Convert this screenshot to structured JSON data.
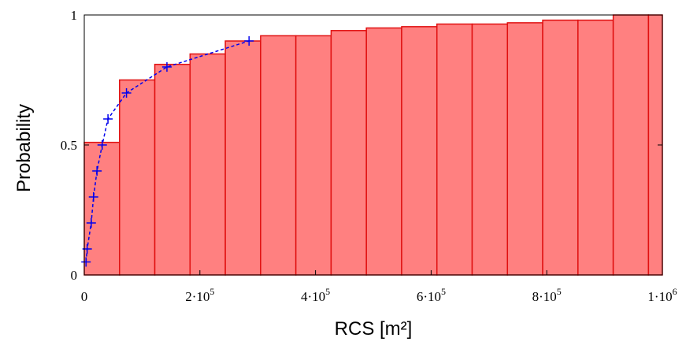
{
  "chart_data": {
    "type": "bar",
    "title": "",
    "xlabel": "RCS [m²]",
    "ylabel": "Probability",
    "xlim": [
      0,
      1000000
    ],
    "ylim": [
      0,
      1
    ],
    "x_tick_labels": [
      {
        "value": 0,
        "mantissa": "0",
        "exponent": ""
      },
      {
        "value": 200000,
        "mantissa": "2·10",
        "exponent": "5"
      },
      {
        "value": 400000,
        "mantissa": "4·10",
        "exponent": "5"
      },
      {
        "value": 600000,
        "mantissa": "6·10",
        "exponent": "5"
      },
      {
        "value": 800000,
        "mantissa": "8·10",
        "exponent": "5"
      },
      {
        "value": 1000000,
        "mantissa": "1·10",
        "exponent": "6"
      }
    ],
    "y_tick_labels": [
      {
        "value": 0,
        "label": "0"
      },
      {
        "value": 0.5,
        "label": "0.5"
      },
      {
        "value": 1,
        "label": "1"
      }
    ],
    "bar_edges": [
      0,
      61000,
      122000,
      183000,
      244000,
      305000,
      366000,
      427000,
      488000,
      549000,
      610000,
      671000,
      732000,
      793000,
      854000,
      915000,
      976000,
      1000000
    ],
    "bar_values": [
      0.51,
      0.75,
      0.81,
      0.85,
      0.9,
      0.92,
      0.92,
      0.94,
      0.95,
      0.955,
      0.965,
      0.965,
      0.97,
      0.98,
      0.98,
      1.0,
      1.0
    ],
    "series": [
      {
        "style": "dashed-line-plus-markers",
        "points": [
          {
            "x": 3000,
            "y": 0.05
          },
          {
            "x": 5000,
            "y": 0.1
          },
          {
            "x": 12000,
            "y": 0.2
          },
          {
            "x": 16000,
            "y": 0.3
          },
          {
            "x": 22000,
            "y": 0.4
          },
          {
            "x": 31000,
            "y": 0.5
          },
          {
            "x": 41000,
            "y": 0.6
          },
          {
            "x": 73000,
            "y": 0.7
          },
          {
            "x": 143000,
            "y": 0.8
          },
          {
            "x": 285000,
            "y": 0.9
          }
        ]
      }
    ],
    "grid": false,
    "colors": {
      "bar_fill": "#ff8080",
      "bar_edge": "#e01010",
      "line": "#0000ee",
      "axis": "#000000"
    }
  }
}
